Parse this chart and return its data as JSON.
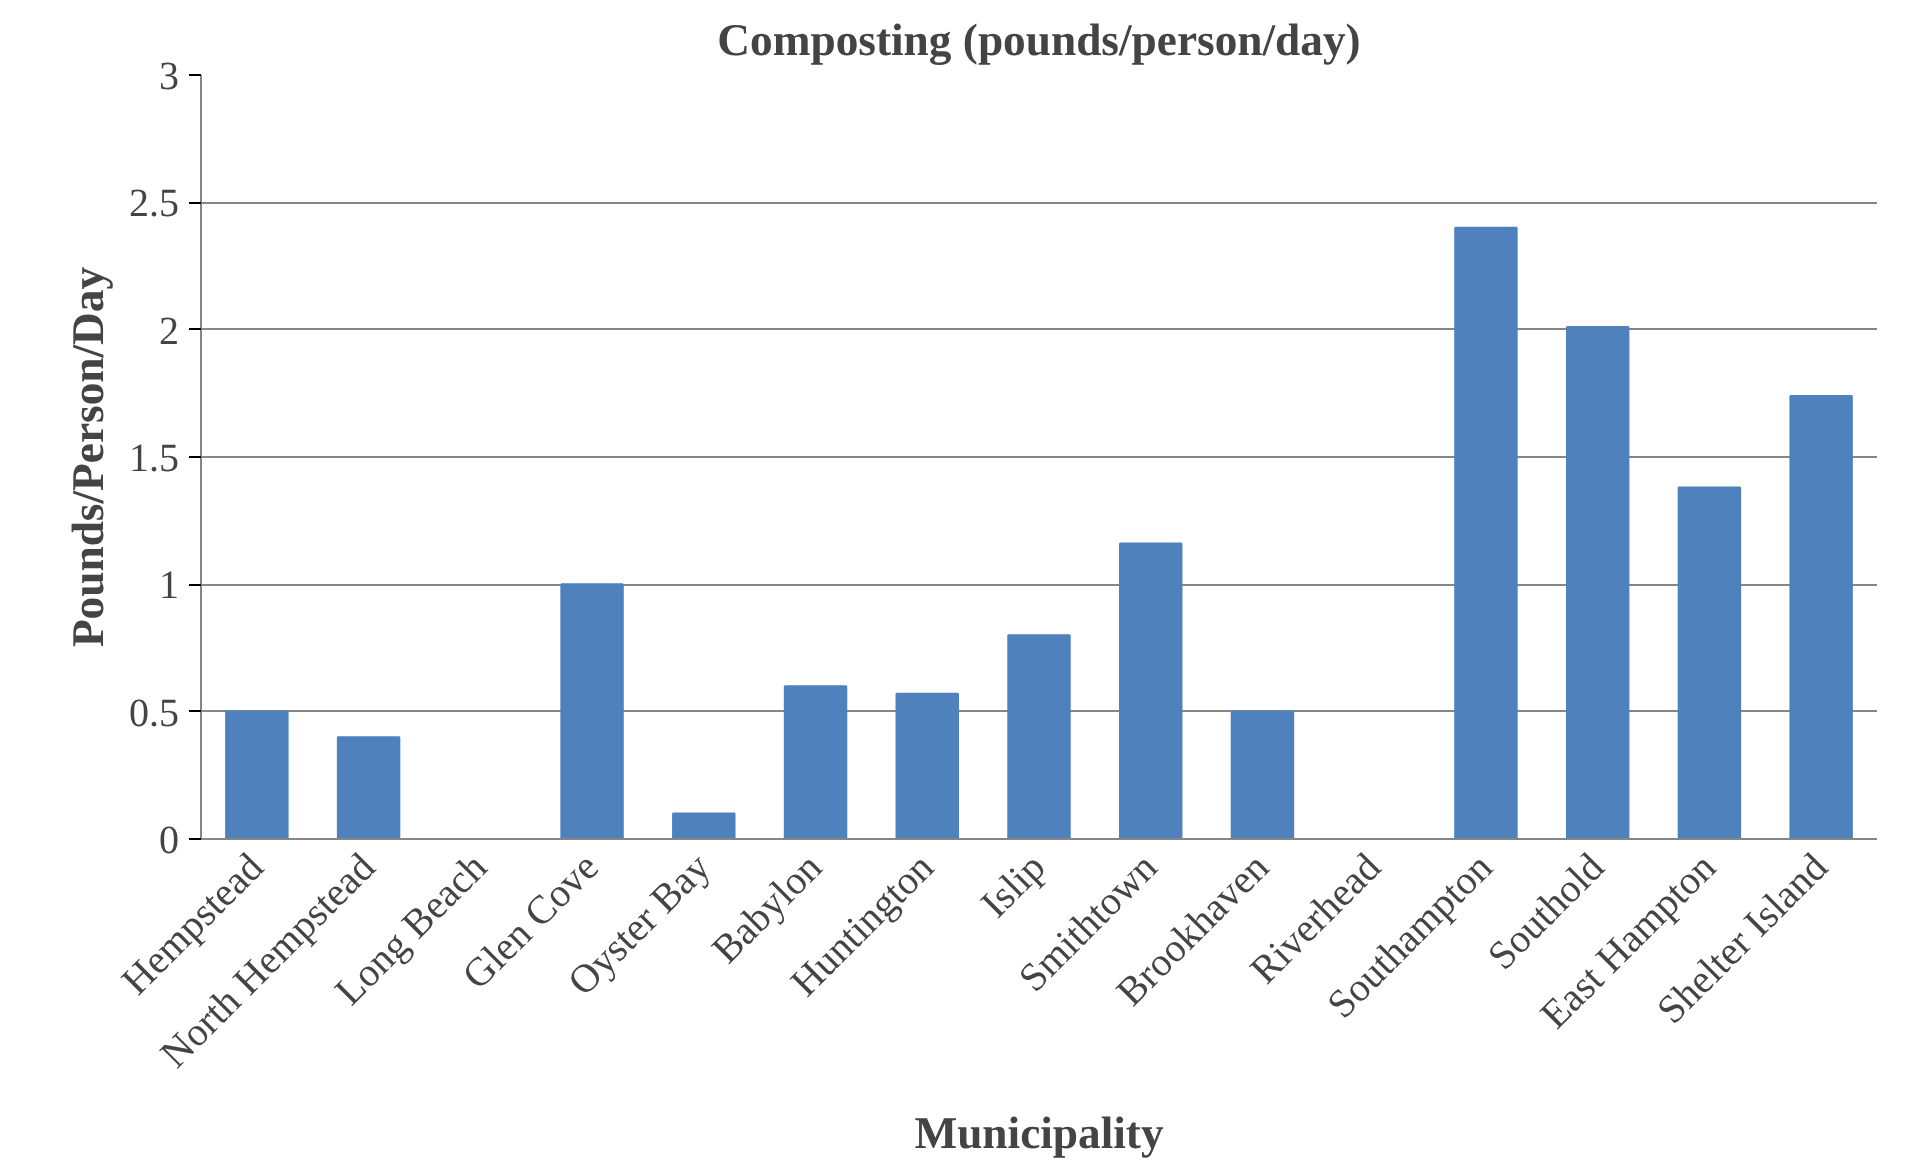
{
  "chart_data": {
    "type": "bar",
    "title": "Composting (pounds/person/day)",
    "xlabel": "Municipality",
    "ylabel": "Pounds/Person/Day",
    "categories": [
      "Hempstead",
      "North Hempstead",
      "Long Beach",
      "Glen Cove",
      "Oyster Bay",
      "Babylon",
      "Huntington",
      "Islip",
      "Smithtown",
      "Brookhaven",
      "Riverhead",
      "Southampton",
      "Southold",
      "East Hampton",
      "Shelter Island"
    ],
    "values": [
      0.5,
      0.4,
      0,
      1.0,
      0.1,
      0.6,
      0.57,
      0.8,
      1.16,
      0.5,
      0,
      2.4,
      2.01,
      1.38,
      1.74
    ],
    "color": "#4f81bd",
    "ylim": [
      0,
      3
    ],
    "yticks": [
      0,
      {
        "value": 0.5,
        "label": "0.5"
      },
      1,
      {
        "value": 1.5,
        "label": "1.5"
      },
      2,
      {
        "value": 2.5,
        "label": "2.5"
      },
      3
    ],
    "grid": "y"
  }
}
